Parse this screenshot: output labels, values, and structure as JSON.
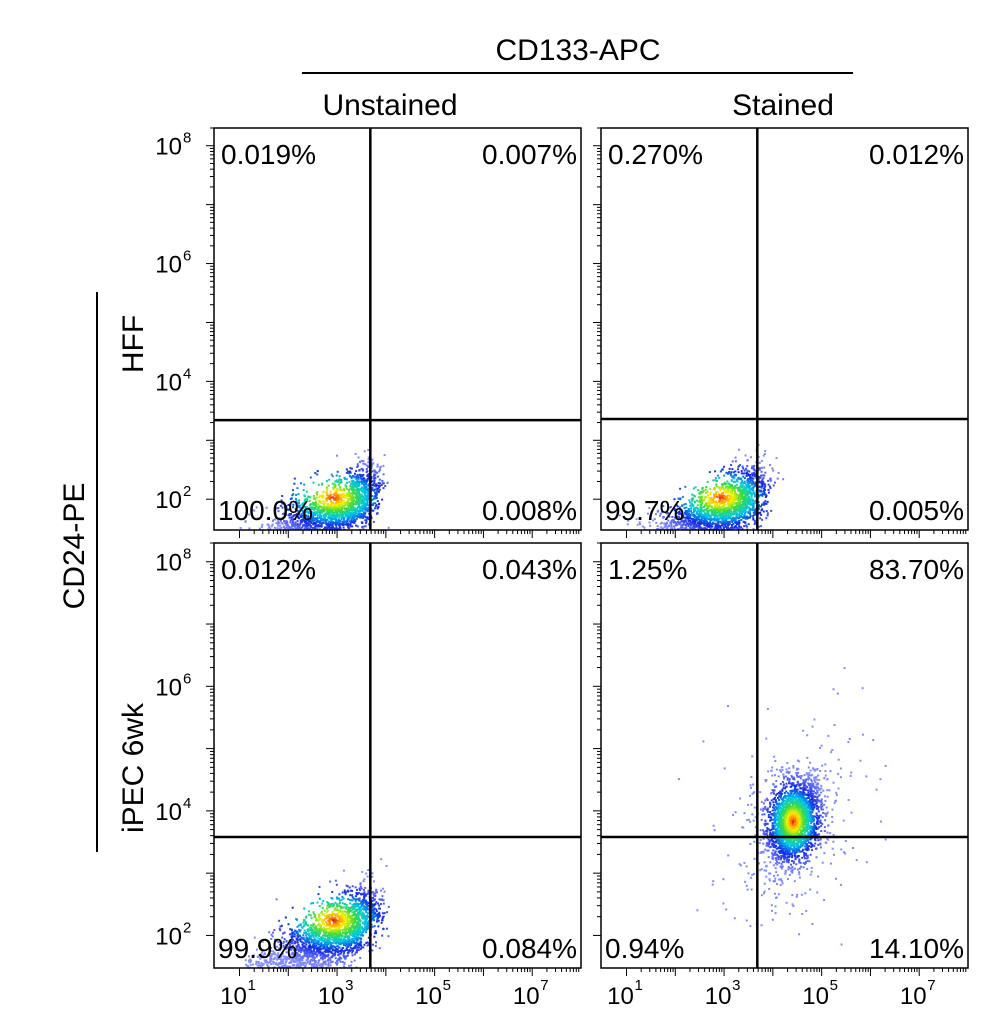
{
  "chart_data": {
    "type": "scatter",
    "title": "",
    "x_axis_group_label": "CD133-APC",
    "y_axis_group_label": "CD24-PE",
    "columns": [
      "Unstained",
      "Stained"
    ],
    "rows": [
      "HFF",
      "iPEC 6wk"
    ],
    "x_scale": "log",
    "y_scale": "log",
    "xlim": [
      3,
      100000000
    ],
    "ylim": [
      30,
      200000000
    ],
    "x_tick_labels": [
      {
        "value": 10,
        "base": "10",
        "exp": "1"
      },
      {
        "value": 1000,
        "base": "10",
        "exp": "3"
      },
      {
        "value": 100000,
        "base": "10",
        "exp": "5"
      },
      {
        "value": 10000000,
        "base": "10",
        "exp": "7"
      }
    ],
    "y_tick_labels": [
      {
        "value": 100,
        "base": "10",
        "exp": "2"
      },
      {
        "value": 10000,
        "base": "10",
        "exp": "4"
      },
      {
        "value": 1000000,
        "base": "10",
        "exp": "6"
      },
      {
        "value": 100000000,
        "base": "10",
        "exp": "8"
      }
    ],
    "panels": [
      {
        "row": "HFF",
        "column": "Unstained",
        "gate": {
          "x": 4800,
          "y": 2200
        },
        "quadrants": {
          "upper_left": "0.019%",
          "upper_right": "0.007%",
          "lower_left": "100.0%",
          "lower_right": "0.008%"
        },
        "cluster": {
          "x_center": 800,
          "y_center": 110
        }
      },
      {
        "row": "HFF",
        "column": "Stained",
        "gate": {
          "x": 4800,
          "y": 2300
        },
        "quadrants": {
          "upper_left": "0.270%",
          "upper_right": "0.012%",
          "lower_left": "99.7%",
          "lower_right": "0.005%"
        },
        "cluster": {
          "x_center": 800,
          "y_center": 110
        }
      },
      {
        "row": "iPEC 6wk",
        "column": "Unstained",
        "gate": {
          "x": 4800,
          "y": 3800
        },
        "quadrants": {
          "upper_left": "0.012%",
          "upper_right": "0.043%",
          "lower_left": "99.9%",
          "lower_right": "0.084%"
        },
        "cluster": {
          "x_center": 800,
          "y_center": 180
        }
      },
      {
        "row": "iPEC 6wk",
        "column": "Stained",
        "gate": {
          "x": 4800,
          "y": 3800
        },
        "quadrants": {
          "upper_left": "1.25%",
          "upper_right": "83.70%",
          "lower_left": "0.94%",
          "lower_right": "14.10%"
        },
        "cluster": {
          "x_center": 25000,
          "y_center": 7000
        }
      }
    ]
  }
}
